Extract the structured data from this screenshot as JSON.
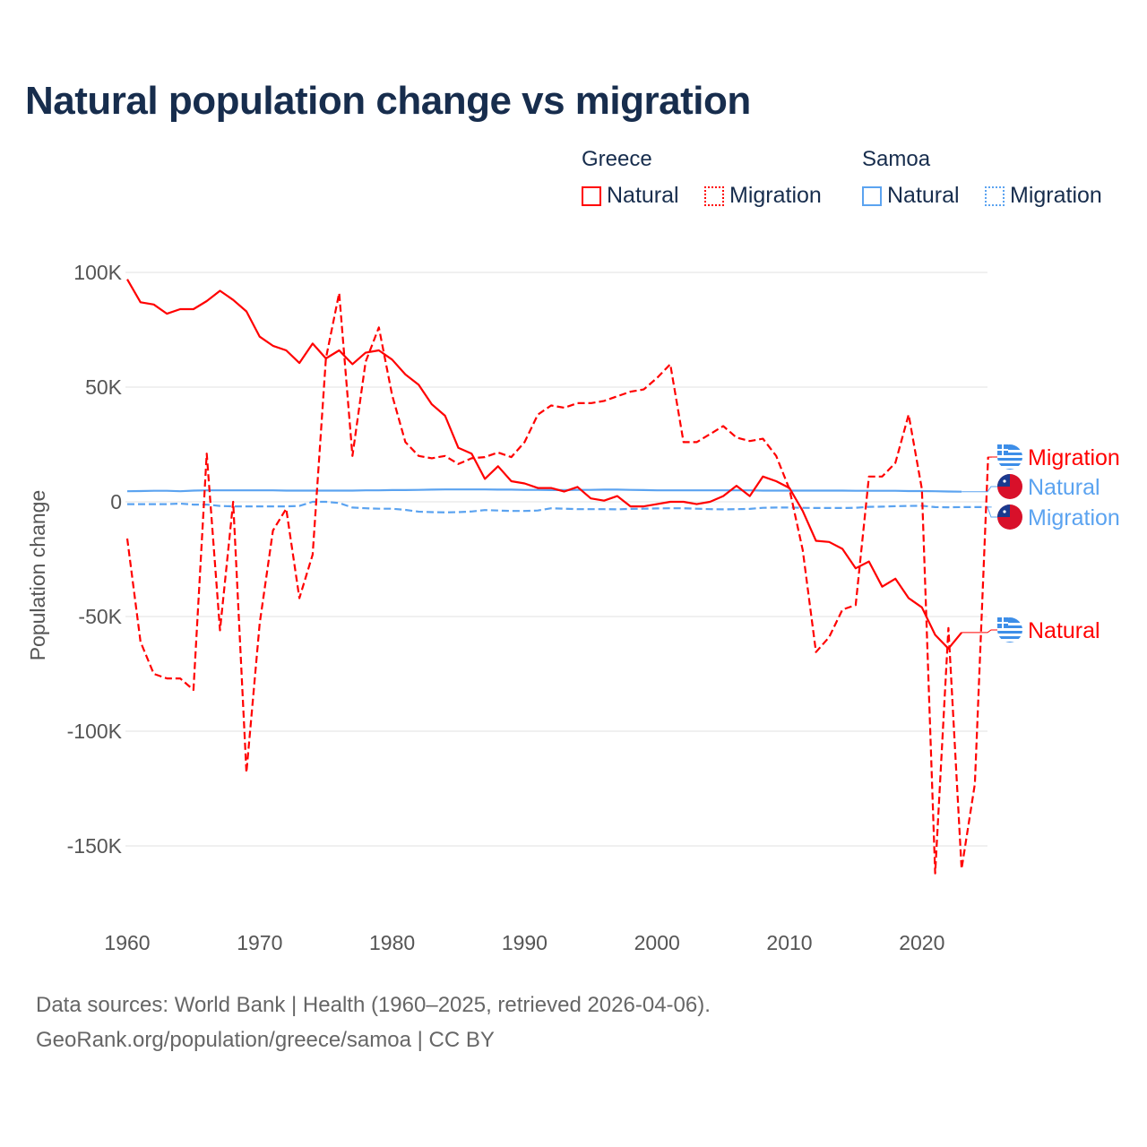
{
  "title": "Natural population change vs migration",
  "legend": {
    "groups": [
      {
        "name": "Greece",
        "items": [
          "Natural",
          "Migration"
        ],
        "color": "#ff0000"
      },
      {
        "name": "Samoa",
        "items": [
          "Natural",
          "Migration"
        ],
        "color": "#5ba3f0"
      }
    ]
  },
  "end_labels": [
    {
      "text": "Migration",
      "country": "Greece",
      "flag": "greece-flag-icon"
    },
    {
      "text": "Natural",
      "country": "Samoa",
      "flag": "samoa-flag-icon"
    },
    {
      "text": "Migration",
      "country": "Samoa",
      "flag": "samoa-flag-icon"
    },
    {
      "text": "Natural",
      "country": "Greece",
      "flag": "greece-flag-icon"
    }
  ],
  "footer": {
    "line1": "Data sources: World Bank | Health (1960–2025, retrieved 2026-04-06).",
    "line2": "GeoRank.org/population/greece/samoa | CC BY"
  },
  "chart_data": {
    "type": "line",
    "title": "Natural population change vs migration",
    "xlabel": "",
    "ylabel": "Population change",
    "xlim": [
      1960,
      2025
    ],
    "ylim": [
      -160000,
      100000
    ],
    "x_ticks": [
      1960,
      1970,
      1980,
      1990,
      2000,
      2010,
      2020
    ],
    "y_ticks": [
      100000,
      50000,
      0,
      -50000,
      -100000,
      -150000
    ],
    "y_tick_labels": [
      "100K",
      "50K",
      "0",
      "-50K",
      "-100K",
      "-150K"
    ],
    "grid": true,
    "legend_position": "top-right",
    "series": [
      {
        "name": "Greece Natural",
        "color": "#ff0000",
        "dash": false,
        "start": 1960,
        "values": [
          97,
          87,
          86,
          82,
          84,
          84,
          87.5,
          92,
          88,
          83,
          72,
          68,
          66,
          60.5,
          69,
          62.5,
          66,
          60,
          65,
          66,
          62,
          55.5,
          51,
          42.5,
          37.5,
          23.5,
          21,
          10,
          15.5,
          9,
          8,
          6,
          6,
          4.5,
          6.5,
          1.5,
          0.5,
          2.5,
          -2,
          -2,
          -1,
          0,
          0,
          -1,
          0,
          2.5,
          7,
          2.5,
          11,
          9,
          6,
          -4,
          -17,
          -17.5,
          -20.5,
          -29,
          -26,
          -37,
          -33.5,
          -42,
          -46,
          -58,
          -64,
          -57
        ]
      },
      {
        "name": "Greece Migration",
        "color": "#ff0000",
        "dash": true,
        "start": 1960,
        "values": [
          -16,
          -61,
          -75,
          -77,
          -77,
          -82,
          21,
          -56,
          0,
          -118,
          -53,
          -12.5,
          -3,
          -42,
          -23,
          62.5,
          91,
          20,
          61,
          76,
          46.5,
          26,
          20,
          19,
          20,
          16.5,
          19,
          19.5,
          21.5,
          19.5,
          26,
          38,
          42,
          41,
          43,
          43,
          44,
          46,
          48,
          49,
          54,
          60,
          26,
          26,
          29.5,
          33,
          28,
          26.5,
          27.5,
          20,
          5.5,
          -21,
          -65.5,
          -59,
          -47,
          -45,
          11,
          11,
          17,
          38,
          5.5,
          -162,
          -55,
          -160,
          -123,
          19.5
        ]
      },
      {
        "name": "Samoa Natural",
        "color": "#5ba3f0",
        "dash": false,
        "start": 1960,
        "values": [
          4.6,
          4.7,
          4.8,
          4.8,
          4.6,
          4.9,
          5,
          5,
          5,
          5,
          5,
          5,
          4.9,
          4.9,
          4.9,
          4.9,
          4.9,
          4.9,
          5,
          5,
          5.1,
          5.1,
          5.2,
          5.3,
          5.4,
          5.4,
          5.4,
          5.4,
          5.3,
          5.3,
          5.2,
          5.2,
          5.1,
          5.1,
          5.2,
          5.2,
          5.3,
          5.3,
          5.2,
          5.1,
          5,
          5,
          5,
          5,
          5,
          5,
          5,
          5,
          4.9,
          4.9,
          4.9,
          4.9,
          4.9,
          4.9,
          4.9,
          4.8,
          4.8,
          4.8,
          4.8,
          4.7,
          4.7,
          4.6,
          4.5,
          4.4
        ]
      },
      {
        "name": "Samoa Migration",
        "color": "#5ba3f0",
        "dash": true,
        "start": 1960,
        "values": [
          -1,
          -1,
          -1,
          -1,
          -0.8,
          -1.2,
          -1.2,
          -1.8,
          -2,
          -2,
          -2,
          -2,
          -2,
          -1.8,
          0,
          0,
          -0.5,
          -2.5,
          -2.8,
          -3,
          -3,
          -3.5,
          -4.3,
          -4.5,
          -4.6,
          -4.5,
          -4.2,
          -3.6,
          -3.8,
          -4,
          -4,
          -3.8,
          -2.8,
          -3,
          -3.2,
          -3.2,
          -3.2,
          -3.3,
          -3.1,
          -3,
          -2.9,
          -2.8,
          -2.8,
          -3,
          -3.2,
          -3.3,
          -3.2,
          -3.1,
          -2.6,
          -2.5,
          -2.5,
          -2.6,
          -2.7,
          -2.7,
          -2.7,
          -2.6,
          -2.2,
          -2.1,
          -1.9,
          -1.8,
          -1.7,
          -2.3,
          -2.4,
          -2.3,
          -2.3,
          -2.3
        ]
      }
    ]
  }
}
